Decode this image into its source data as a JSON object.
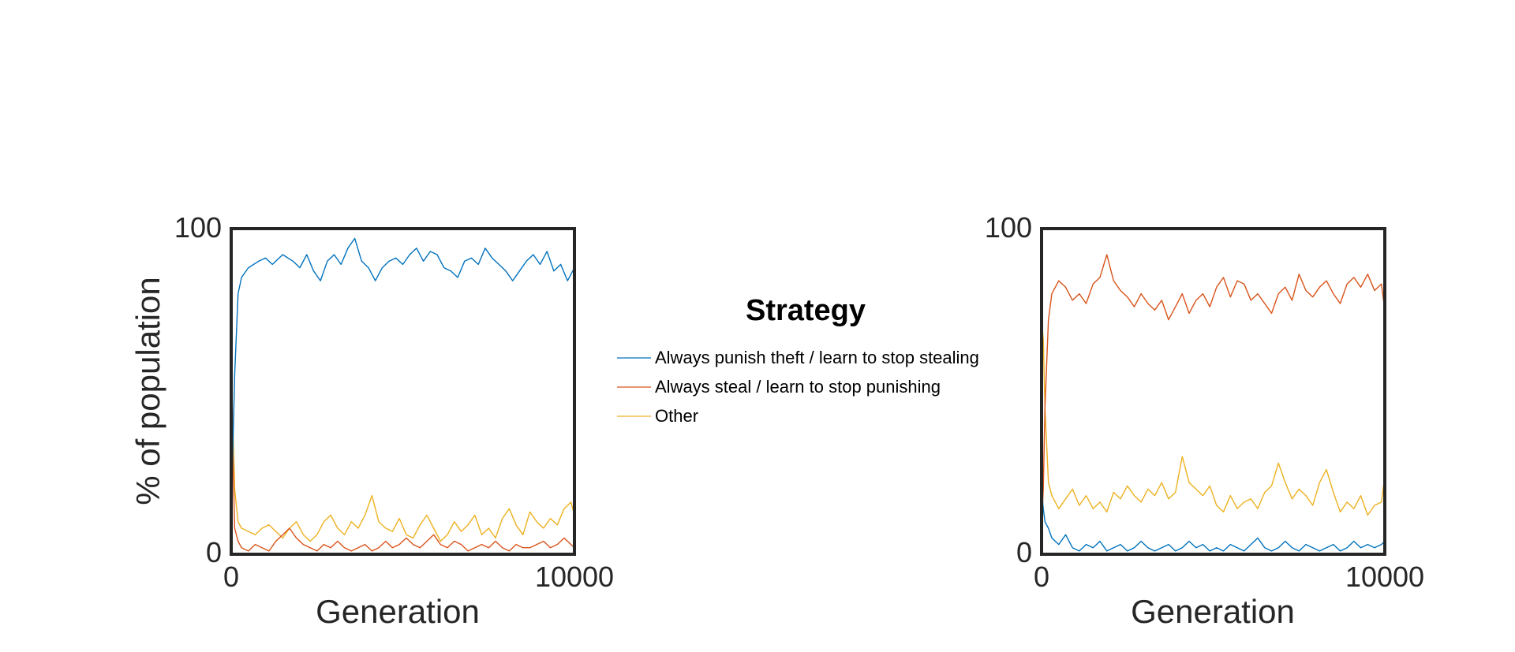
{
  "chart_data": [
    {
      "type": "line",
      "xlabel": "Generation",
      "ylabel": "% of population",
      "xlim": [
        0,
        10000
      ],
      "ylim": [
        0,
        100
      ],
      "xticks": [
        "0",
        "10000"
      ],
      "yticks": [
        "0",
        "100"
      ],
      "grid": false,
      "series": [
        {
          "name": "Always punish theft / learn to stop stealing",
          "color": "#0072BD",
          "x": [
            0,
            100,
            200,
            300,
            500,
            800,
            1000,
            1200,
            1500,
            1800,
            2000,
            2200,
            2400,
            2600,
            2800,
            3000,
            3200,
            3400,
            3600,
            3800,
            4000,
            4200,
            4400,
            4600,
            4800,
            5000,
            5200,
            5400,
            5600,
            5800,
            6000,
            6200,
            6400,
            6600,
            6800,
            7000,
            7200,
            7400,
            7600,
            7800,
            8000,
            8200,
            8400,
            8600,
            8800,
            9000,
            9200,
            9400,
            9600,
            9800,
            10000
          ],
          "y": [
            12,
            55,
            80,
            85,
            88,
            90,
            91,
            89,
            92,
            90,
            88,
            92,
            87,
            84,
            90,
            92,
            89,
            94,
            97,
            90,
            88,
            84,
            88,
            90,
            91,
            89,
            92,
            94,
            90,
            93,
            92,
            88,
            87,
            85,
            90,
            91,
            89,
            94,
            91,
            89,
            87,
            84,
            87,
            90,
            92,
            89,
            93,
            87,
            89,
            84,
            88
          ]
        },
        {
          "name": "Always steal / learn to stop punishing",
          "color": "#D95319",
          "x": [
            0,
            50,
            100,
            200,
            300,
            500,
            700,
            900,
            1100,
            1300,
            1500,
            1700,
            1900,
            2100,
            2300,
            2500,
            2700,
            2900,
            3100,
            3300,
            3500,
            3700,
            3900,
            4100,
            4300,
            4500,
            4700,
            4900,
            5100,
            5300,
            5500,
            5700,
            5900,
            6100,
            6300,
            6500,
            6700,
            6900,
            7100,
            7300,
            7500,
            7700,
            7900,
            8100,
            8300,
            8500,
            8700,
            8900,
            9100,
            9300,
            9500,
            9700,
            9900,
            10000
          ],
          "y": [
            70,
            30,
            8,
            4,
            2,
            1,
            3,
            2,
            1,
            4,
            6,
            8,
            5,
            3,
            2,
            1,
            3,
            2,
            4,
            2,
            1,
            2,
            3,
            1,
            2,
            4,
            2,
            3,
            5,
            3,
            2,
            4,
            6,
            3,
            2,
            4,
            3,
            1,
            2,
            3,
            2,
            4,
            2,
            1,
            3,
            2,
            2,
            3,
            4,
            2,
            3,
            5,
            3,
            2
          ]
        },
        {
          "name": "Other",
          "color": "#EDB120",
          "x": [
            0,
            50,
            100,
            200,
            300,
            500,
            700,
            900,
            1100,
            1300,
            1500,
            1700,
            1900,
            2100,
            2300,
            2500,
            2700,
            2900,
            3100,
            3300,
            3500,
            3700,
            3900,
            4100,
            4300,
            4500,
            4700,
            4900,
            5100,
            5300,
            5500,
            5700,
            5900,
            6100,
            6300,
            6500,
            6700,
            6900,
            7100,
            7300,
            7500,
            7700,
            7900,
            8100,
            8300,
            8500,
            8700,
            8900,
            9100,
            9300,
            9500,
            9700,
            9900,
            10000
          ],
          "y": [
            18,
            40,
            20,
            10,
            8,
            7,
            6,
            8,
            9,
            7,
            5,
            8,
            10,
            6,
            4,
            6,
            10,
            12,
            8,
            6,
            10,
            8,
            12,
            18,
            10,
            8,
            7,
            11,
            6,
            5,
            9,
            12,
            8,
            4,
            6,
            10,
            7,
            9,
            12,
            6,
            8,
            5,
            11,
            14,
            9,
            6,
            13,
            10,
            8,
            11,
            9,
            14,
            16,
            12
          ]
        }
      ]
    },
    {
      "type": "line",
      "xlabel": "Generation",
      "ylabel": "",
      "xlim": [
        0,
        10000
      ],
      "ylim": [
        0,
        100
      ],
      "xticks": [
        "0",
        "10000"
      ],
      "yticks": [
        "0",
        "100"
      ],
      "grid": false,
      "series": [
        {
          "name": "Always punish theft / learn to stop stealing",
          "color": "#0072BD",
          "x": [
            0,
            50,
            100,
            200,
            300,
            500,
            700,
            900,
            1100,
            1300,
            1500,
            1700,
            1900,
            2100,
            2300,
            2500,
            2700,
            2900,
            3100,
            3300,
            3500,
            3700,
            3900,
            4100,
            4300,
            4500,
            4700,
            4900,
            5100,
            5300,
            5500,
            5700,
            5900,
            6100,
            6300,
            6500,
            6700,
            6900,
            7100,
            7300,
            7500,
            7700,
            7900,
            8100,
            8300,
            8500,
            8700,
            8900,
            9100,
            9300,
            9500,
            9700,
            9900,
            10000
          ],
          "y": [
            20,
            14,
            10,
            8,
            5,
            3,
            6,
            2,
            1,
            3,
            2,
            4,
            1,
            2,
            3,
            1,
            2,
            4,
            2,
            1,
            2,
            3,
            1,
            2,
            4,
            2,
            3,
            1,
            2,
            1,
            3,
            2,
            1,
            3,
            5,
            2,
            1,
            2,
            4,
            2,
            1,
            3,
            2,
            1,
            2,
            3,
            1,
            2,
            4,
            2,
            3,
            2,
            3,
            4
          ]
        },
        {
          "name": "Always steal / learn to stop punishing",
          "color": "#D95319",
          "x": [
            0,
            50,
            100,
            200,
            300,
            500,
            700,
            900,
            1100,
            1300,
            1500,
            1700,
            1900,
            2100,
            2300,
            2500,
            2700,
            2900,
            3100,
            3300,
            3500,
            3700,
            3900,
            4100,
            4300,
            4500,
            4700,
            4900,
            5100,
            5300,
            5500,
            5700,
            5900,
            6100,
            6300,
            6500,
            6700,
            6900,
            7100,
            7300,
            7500,
            7700,
            7900,
            8100,
            8300,
            8500,
            8700,
            8900,
            9100,
            9300,
            9500,
            9700,
            9900,
            10000
          ],
          "y": [
            8,
            20,
            45,
            72,
            80,
            84,
            82,
            78,
            80,
            77,
            83,
            85,
            92,
            84,
            81,
            79,
            76,
            80,
            77,
            75,
            78,
            72,
            76,
            80,
            74,
            78,
            80,
            76,
            82,
            85,
            79,
            84,
            83,
            78,
            80,
            77,
            74,
            80,
            82,
            78,
            86,
            81,
            79,
            82,
            84,
            80,
            77,
            83,
            85,
            82,
            86,
            81,
            83,
            75
          ]
        },
        {
          "name": "Other",
          "color": "#EDB120",
          "x": [
            0,
            50,
            100,
            200,
            300,
            500,
            700,
            900,
            1100,
            1300,
            1500,
            1700,
            1900,
            2100,
            2300,
            2500,
            2700,
            2900,
            3100,
            3300,
            3500,
            3700,
            3900,
            4100,
            4300,
            4500,
            4700,
            4900,
            5100,
            5300,
            5500,
            5700,
            5900,
            6100,
            6300,
            6500,
            6700,
            6900,
            7100,
            7300,
            7500,
            7700,
            7900,
            8100,
            8300,
            8500,
            8700,
            8900,
            9100,
            9300,
            9500,
            9700,
            9900,
            10000
          ],
          "y": [
            72,
            66,
            45,
            22,
            18,
            14,
            17,
            20,
            15,
            18,
            14,
            16,
            13,
            19,
            17,
            21,
            18,
            16,
            20,
            18,
            22,
            17,
            19,
            30,
            22,
            20,
            18,
            21,
            15,
            13,
            18,
            14,
            16,
            17,
            14,
            19,
            21,
            28,
            22,
            17,
            20,
            18,
            15,
            22,
            26,
            19,
            13,
            16,
            14,
            18,
            12,
            15,
            16,
            24
          ]
        }
      ]
    }
  ],
  "legend": {
    "title": "Strategy",
    "items": [
      {
        "label": "Always punish theft / learn to stop stealing",
        "color": "#0072BD"
      },
      {
        "label": "Always steal / learn to stop punishing",
        "color": "#D95319"
      },
      {
        "label": "Other",
        "color": "#EDB120"
      }
    ]
  }
}
